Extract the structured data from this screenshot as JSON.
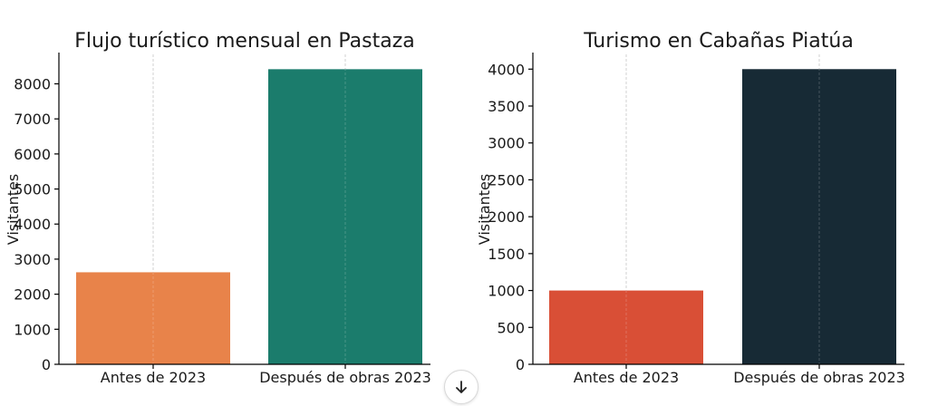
{
  "chart_data": [
    {
      "type": "bar",
      "title": "Flujo turístico mensual en Pastaza",
      "ylabel": "Visitantes",
      "categories": [
        "Antes de 2023",
        "Después de obras 2023"
      ],
      "values": [
        2625,
        8417
      ],
      "colors": [
        "#e8834a",
        "#1b7c6c"
      ],
      "yticks": [
        0,
        1000,
        2000,
        3000,
        4000,
        5000,
        6000,
        7000,
        8000
      ],
      "ylim": [
        0,
        8840
      ],
      "grid": "x-dashed"
    },
    {
      "type": "bar",
      "title": "Turismo en Cabañas Piatúa",
      "ylabel": "Visitantes",
      "categories": [
        "Antes de 2023",
        "Después de obras 2023"
      ],
      "values": [
        1000,
        4000
      ],
      "colors": [
        "#d94f36",
        "#172a35"
      ],
      "yticks": [
        0,
        500,
        1000,
        1500,
        2000,
        2500,
        3000,
        3500,
        4000
      ],
      "ylim": [
        0,
        4200
      ],
      "grid": "x-dashed"
    }
  ],
  "scroll_button": {
    "icon": "arrow-down-icon"
  }
}
